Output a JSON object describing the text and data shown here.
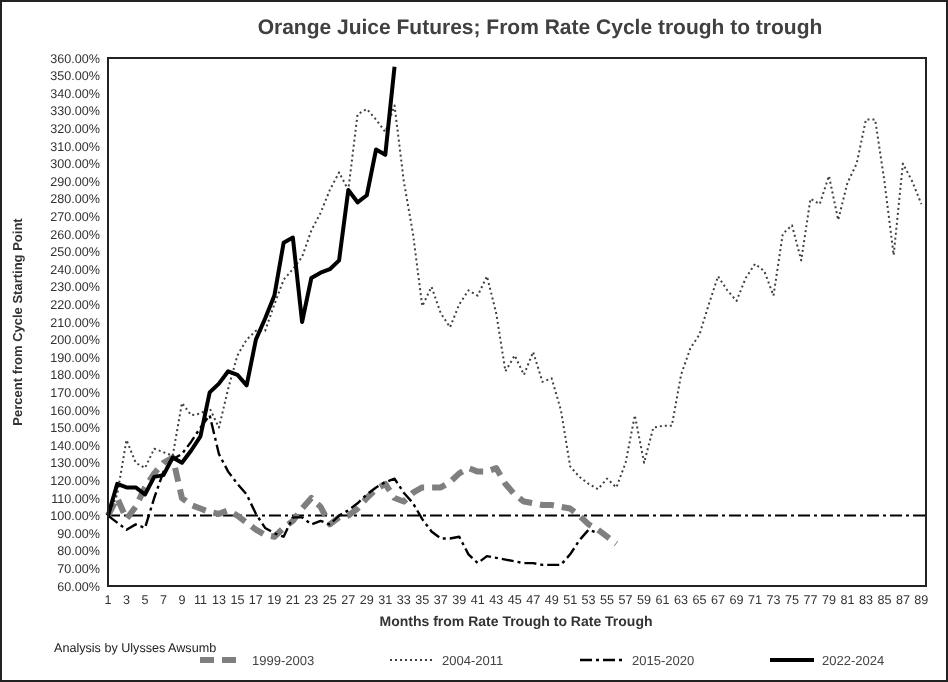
{
  "chart_data": {
    "type": "line",
    "title": "Orange Juice Futures; From Rate Cycle trough to trough",
    "xlabel": "Months from Rate Trough to Rate Trough",
    "ylabel": "Percent from Cycle Starting Point",
    "annotations": [
      "Analysis by Ulysses Awsumb"
    ],
    "xlim": [
      1,
      89.5
    ],
    "xticks": [
      1,
      3,
      5,
      7,
      9,
      11,
      13,
      15,
      17,
      19,
      21,
      23,
      25,
      27,
      29,
      31,
      33,
      35,
      37,
      39,
      41,
      43,
      45,
      47,
      49,
      51,
      53,
      55,
      57,
      59,
      61,
      63,
      65,
      67,
      69,
      71,
      73,
      75,
      77,
      79,
      81,
      83,
      85,
      87,
      89
    ],
    "ylim": [
      60,
      360
    ],
    "yticks": [
      {
        "value": 60,
        "label": "60.00%"
      },
      {
        "value": 70,
        "label": "70.00%"
      },
      {
        "value": 80,
        "label": "80.00%"
      },
      {
        "value": 90,
        "label": "90.00%"
      },
      {
        "value": 100,
        "label": "100.00%"
      },
      {
        "value": 110,
        "label": "110.00%"
      },
      {
        "value": 120,
        "label": "120.00%"
      },
      {
        "value": 130,
        "label": "130.00%"
      },
      {
        "value": 140,
        "label": "140.00%"
      },
      {
        "value": 150,
        "label": "150.00%"
      },
      {
        "value": 160,
        "label": "160.00%"
      },
      {
        "value": 170,
        "label": "170.00%"
      },
      {
        "value": 180,
        "label": "180.00%"
      },
      {
        "value": 190,
        "label": "190.00%"
      },
      {
        "value": 200,
        "label": "200.00%"
      },
      {
        "value": 210,
        "label": "210.00%"
      },
      {
        "value": 220,
        "label": "220.00%"
      },
      {
        "value": 230,
        "label": "230.00%"
      },
      {
        "value": 240,
        "label": "240.00%"
      },
      {
        "value": 250,
        "label": "250.00%"
      },
      {
        "value": 260,
        "label": "260.00%"
      },
      {
        "value": 270,
        "label": "270.00%"
      },
      {
        "value": 280,
        "label": "280.00%"
      },
      {
        "value": 290,
        "label": "290.00%"
      },
      {
        "value": 300,
        "label": "300.00%"
      },
      {
        "value": 310,
        "label": "310.00%"
      },
      {
        "value": 320,
        "label": "320.00%"
      },
      {
        "value": 330,
        "label": "330.00%"
      },
      {
        "value": 340,
        "label": "340.00%"
      },
      {
        "value": 350,
        "label": "350.00%"
      },
      {
        "value": 360,
        "label": "360.00%"
      }
    ],
    "grid": false,
    "legend": "bottom",
    "ref_lines": [
      {
        "axis": "y",
        "value": 100,
        "color": "#000000",
        "line_style": "dashdot"
      }
    ],
    "series": [
      {
        "name": "1999-2003",
        "color": "#7f7f7f",
        "line_style": "dashed",
        "x": [
          1,
          2,
          3,
          4,
          5,
          6,
          7,
          8,
          9,
          10,
          11,
          12,
          13,
          14,
          15,
          16,
          17,
          18,
          19,
          20,
          21,
          22,
          23,
          24,
          25,
          26,
          27,
          28,
          29,
          30,
          31,
          32,
          33,
          34,
          35,
          36,
          37,
          38,
          39,
          40,
          41,
          42,
          43,
          44,
          45,
          46,
          47,
          48,
          49,
          50,
          51,
          52,
          53,
          54,
          55,
          56
        ],
        "values": [
          100,
          110,
          98,
          105,
          116,
          124,
          130,
          133,
          110,
          106,
          104,
          102,
          101,
          103,
          100,
          96,
          92,
          89,
          88,
          93,
          97,
          104,
          110,
          105,
          95,
          99,
          100,
          104,
          110,
          115,
          118,
          110,
          108,
          113,
          116,
          116,
          116,
          119,
          124,
          127,
          125,
          125,
          127,
          118,
          112,
          108,
          107,
          106,
          106,
          105,
          104,
          100,
          95,
          92,
          88,
          84
        ]
      },
      {
        "name": "2004-2011",
        "color": "#404040",
        "line_style": "dotted",
        "x": [
          1,
          2,
          3,
          4,
          5,
          6,
          7,
          8,
          9,
          10,
          11,
          12,
          13,
          14,
          15,
          16,
          17,
          18,
          19,
          20,
          21,
          22,
          23,
          24,
          25,
          26,
          27,
          28,
          29,
          30,
          31,
          32,
          33,
          34,
          35,
          36,
          37,
          38,
          39,
          40,
          41,
          42,
          43,
          44,
          45,
          46,
          47,
          48,
          49,
          50,
          51,
          52,
          53,
          54,
          55,
          56,
          57,
          58,
          59,
          60,
          61,
          62,
          63,
          64,
          65,
          66,
          67,
          68,
          69,
          70,
          71,
          72,
          73,
          74,
          75,
          76,
          77,
          78,
          79,
          80,
          81,
          82,
          83,
          84,
          85,
          86,
          87,
          88,
          89
        ],
        "values": [
          100,
          112,
          143,
          130,
          127,
          138,
          136,
          134,
          164,
          157,
          158,
          161,
          150,
          172,
          191,
          200,
          205,
          205,
          220,
          234,
          240,
          247,
          262,
          272,
          285,
          295,
          285,
          328,
          331,
          325,
          318,
          333,
          290,
          260,
          219,
          230,
          215,
          207,
          220,
          228,
          225,
          236,
          215,
          182,
          191,
          180,
          193,
          176,
          178,
          160,
          128,
          122,
          118,
          115,
          121,
          116,
          130,
          157,
          130,
          150,
          151,
          151,
          180,
          195,
          203,
          220,
          236,
          228,
          222,
          235,
          243,
          239,
          225,
          260,
          265,
          245,
          280,
          277,
          293,
          268,
          289,
          300,
          325,
          325,
          290,
          248,
          300,
          290,
          277
        ]
      },
      {
        "name": "2015-2020",
        "color": "#000000",
        "line_style": "dashdot",
        "x": [
          1,
          2,
          3,
          4,
          5,
          6,
          7,
          8,
          9,
          10,
          11,
          12,
          13,
          14,
          15,
          16,
          17,
          18,
          19,
          20,
          21,
          22,
          23,
          24,
          25,
          26,
          27,
          28,
          29,
          30,
          31,
          32,
          33,
          34,
          35,
          36,
          37,
          38,
          39,
          40,
          41,
          42,
          43,
          44,
          45,
          46,
          47,
          48,
          49,
          50,
          51,
          52,
          53,
          54
        ],
        "values": [
          100,
          96,
          92,
          95,
          93,
          110,
          125,
          132,
          135,
          142,
          150,
          157,
          135,
          125,
          118,
          112,
          101,
          93,
          90,
          88,
          99,
          99,
          95,
          97,
          95,
          100,
          103,
          107,
          112,
          116,
          119,
          121,
          113,
          107,
          98,
          91,
          87,
          87,
          88,
          78,
          73,
          77,
          76,
          75,
          74,
          73,
          73,
          72,
          72,
          72,
          78,
          86,
          92,
          90
        ]
      },
      {
        "name": "2022-2024",
        "color": "#000000",
        "line_style": "solid",
        "x": [
          1,
          2,
          3,
          4,
          5,
          6,
          7,
          8,
          9,
          10,
          11,
          12,
          13,
          14,
          15,
          16,
          17,
          18,
          19,
          20,
          21,
          22,
          23,
          24,
          25,
          26,
          27,
          28,
          29,
          30,
          31,
          32
        ],
        "values": [
          100,
          118,
          116,
          116,
          112,
          122,
          123,
          133,
          130,
          137,
          145,
          170,
          175,
          182,
          180,
          174,
          200,
          212,
          225,
          255,
          258,
          210,
          235,
          238,
          240,
          245,
          285,
          278,
          282,
          308,
          305,
          355
        ]
      }
    ]
  }
}
